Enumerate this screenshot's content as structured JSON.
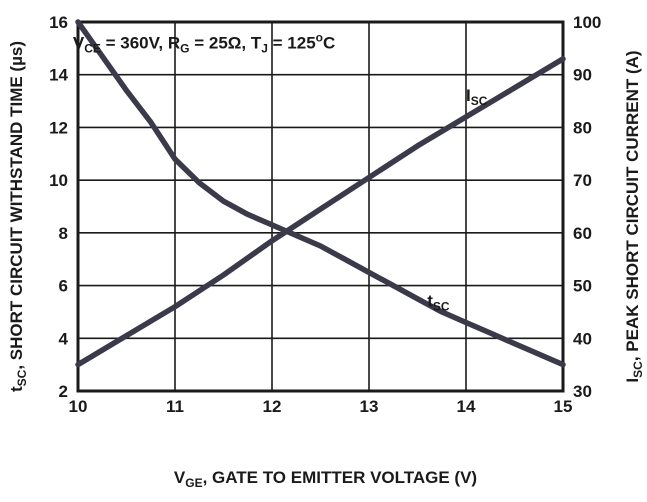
{
  "chart_data": {
    "type": "line",
    "annotation": {
      "parts": [
        {
          "t": "V",
          "sub": false
        },
        {
          "t": "CE",
          "sub": true
        },
        {
          "t": " = 360V, R",
          "sub": false
        },
        {
          "t": "G",
          "sub": true
        },
        {
          "t": " = 25Ω, T",
          "sub": false
        },
        {
          "t": "J",
          "sub": true
        },
        {
          "t": " = 125",
          "sub": false
        },
        {
          "t": "o",
          "sup": true
        },
        {
          "t": "C",
          "sub": false
        }
      ]
    },
    "xlabel": {
      "parts": [
        {
          "t": "V",
          "sub": false
        },
        {
          "t": "GE",
          "sub": true
        },
        {
          "t": ", GATE TO EMITTER VOLTAGE (V)",
          "sub": false
        }
      ]
    },
    "ylabel_left": {
      "parts": [
        {
          "t": "t",
          "sub": false
        },
        {
          "t": "SC",
          "sub": true
        },
        {
          "t": ", SHORT CIRCUIT WITHSTAND TIME (µs)",
          "sub": false
        }
      ]
    },
    "ylabel_right": {
      "parts": [
        {
          "t": "I",
          "sub": false
        },
        {
          "t": "SC",
          "sub": true
        },
        {
          "t": ", PEAK SHORT CIRCUIT CURRENT (A)",
          "sub": false
        }
      ]
    },
    "xlim": [
      10,
      15
    ],
    "ylim_left": [
      2,
      16
    ],
    "ylim_right": [
      30,
      100
    ],
    "x_ticks": [
      10,
      11,
      12,
      13,
      14,
      15
    ],
    "y_left_ticks": [
      2,
      4,
      6,
      8,
      10,
      12,
      14,
      16
    ],
    "y_right_ticks": [
      30,
      40,
      50,
      60,
      70,
      80,
      90,
      100
    ],
    "grid": true,
    "series": [
      {
        "name": "tSC",
        "label_parts": [
          {
            "t": "t",
            "sub": false
          },
          {
            "t": "SC",
            "sub": true
          }
        ],
        "axis": "left",
        "x": [
          10,
          10.25,
          10.5,
          10.75,
          11,
          11.25,
          11.5,
          11.75,
          12,
          12.25,
          12.5,
          12.75,
          13,
          13.25,
          13.5,
          13.75,
          14,
          14.25,
          14.5,
          14.75,
          15
        ],
        "y": [
          16,
          14.7,
          13.4,
          12.2,
          10.8,
          9.9,
          9.2,
          8.7,
          8.3,
          7.9,
          7.5,
          7.0,
          6.5,
          6.0,
          5.5,
          5.0,
          4.6,
          4.2,
          3.8,
          3.4,
          3.0
        ]
      },
      {
        "name": "ISC",
        "label_parts": [
          {
            "t": "I",
            "sub": false
          },
          {
            "t": "SC",
            "sub": true
          }
        ],
        "axis": "right",
        "x": [
          10,
          10.5,
          11,
          11.5,
          12,
          12.5,
          13,
          13.5,
          14,
          14.5,
          15
        ],
        "y": [
          35,
          40.5,
          46,
          52,
          58.5,
          64.5,
          70.5,
          76.5,
          82,
          87.5,
          93
        ]
      }
    ]
  }
}
